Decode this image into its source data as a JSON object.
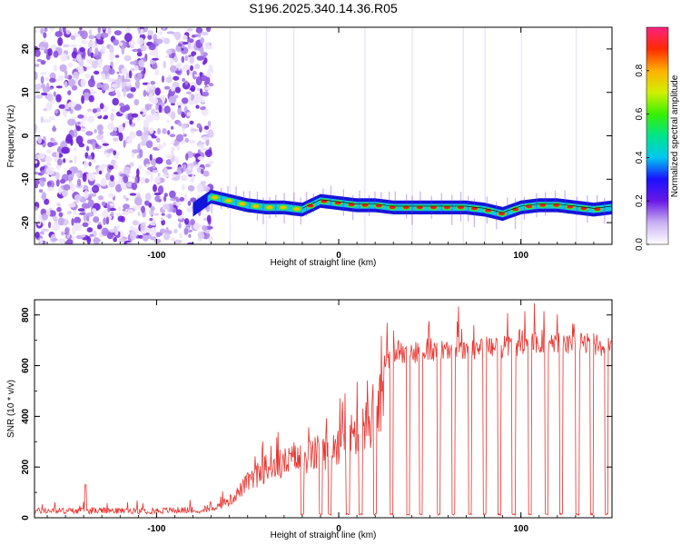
{
  "title": "S196.2025.340.14.36.R05",
  "chart_data": [
    {
      "type": "heatmap",
      "name": "spectrogram",
      "xlabel": "Height of straight line (km)",
      "ylabel": "Frequency (Hz)",
      "xlim": [
        -167,
        150
      ],
      "ylim": [
        -25,
        25
      ],
      "xticks": [
        -100,
        0,
        100
      ],
      "xtick_labels": [
        "-100",
        "0",
        "100"
      ],
      "yticks": [
        20,
        10,
        0,
        -10,
        -20
      ],
      "ytick_labels": [
        "20",
        "10",
        "0",
        "-10",
        "-20"
      ],
      "noise_region_x": [
        -167,
        -70
      ],
      "track": {
        "x": [
          -80,
          -70,
          -60,
          -50,
          -40,
          -30,
          -20,
          -10,
          0,
          10,
          20,
          30,
          40,
          50,
          60,
          70,
          80,
          90,
          100,
          110,
          120,
          130,
          140,
          150
        ],
        "y": [
          -17,
          -14,
          -15,
          -16,
          -16.5,
          -16.5,
          -17,
          -15,
          -15.5,
          -16,
          -16,
          -16.5,
          -16.5,
          -16.5,
          -16.5,
          -16.5,
          -17,
          -18,
          -16.5,
          -16,
          -16,
          -16.5,
          -17,
          -16.5
        ]
      },
      "colorbar": {
        "label": "Normalized spectral amplitude",
        "range": [
          0,
          1
        ],
        "ticks": [
          0.0,
          0.2,
          0.4,
          0.6,
          0.8
        ],
        "tick_labels": [
          "0.0",
          "0.2",
          "0.4",
          "0.6",
          "0.8"
        ]
      }
    },
    {
      "type": "line",
      "name": "snr",
      "xlabel": "Height of straight line (km)",
      "ylabel": "SNR (10 * v/v)",
      "xlim": [
        -167,
        150
      ],
      "ylim": [
        0,
        860
      ],
      "xticks": [
        -100,
        0,
        100
      ],
      "xtick_labels": [
        "-100",
        "0",
        "100"
      ],
      "yticks": [
        0,
        200,
        400,
        600,
        800
      ],
      "ytick_labels": [
        "0",
        "200",
        "400",
        "600",
        "800"
      ],
      "color": "#e8332e",
      "envelope": {
        "x": [
          -167,
          -140,
          -100,
          -75,
          -60,
          -50,
          -40,
          -30,
          -20,
          -10,
          0,
          10,
          20,
          25,
          30,
          40,
          60,
          80,
          100,
          120,
          150
        ],
        "y": [
          25,
          25,
          25,
          30,
          80,
          180,
          250,
          280,
          300,
          330,
          380,
          430,
          520,
          600,
          650,
          650,
          670,
          670,
          680,
          690,
          680
        ]
      },
      "dropouts_x": [
        -20,
        -10,
        -5,
        5,
        12,
        20,
        29,
        38,
        45,
        55,
        63,
        72,
        80,
        88,
        96,
        105,
        114,
        122,
        131,
        139,
        147
      ],
      "spike": {
        "x": -139,
        "y": 130
      }
    }
  ]
}
